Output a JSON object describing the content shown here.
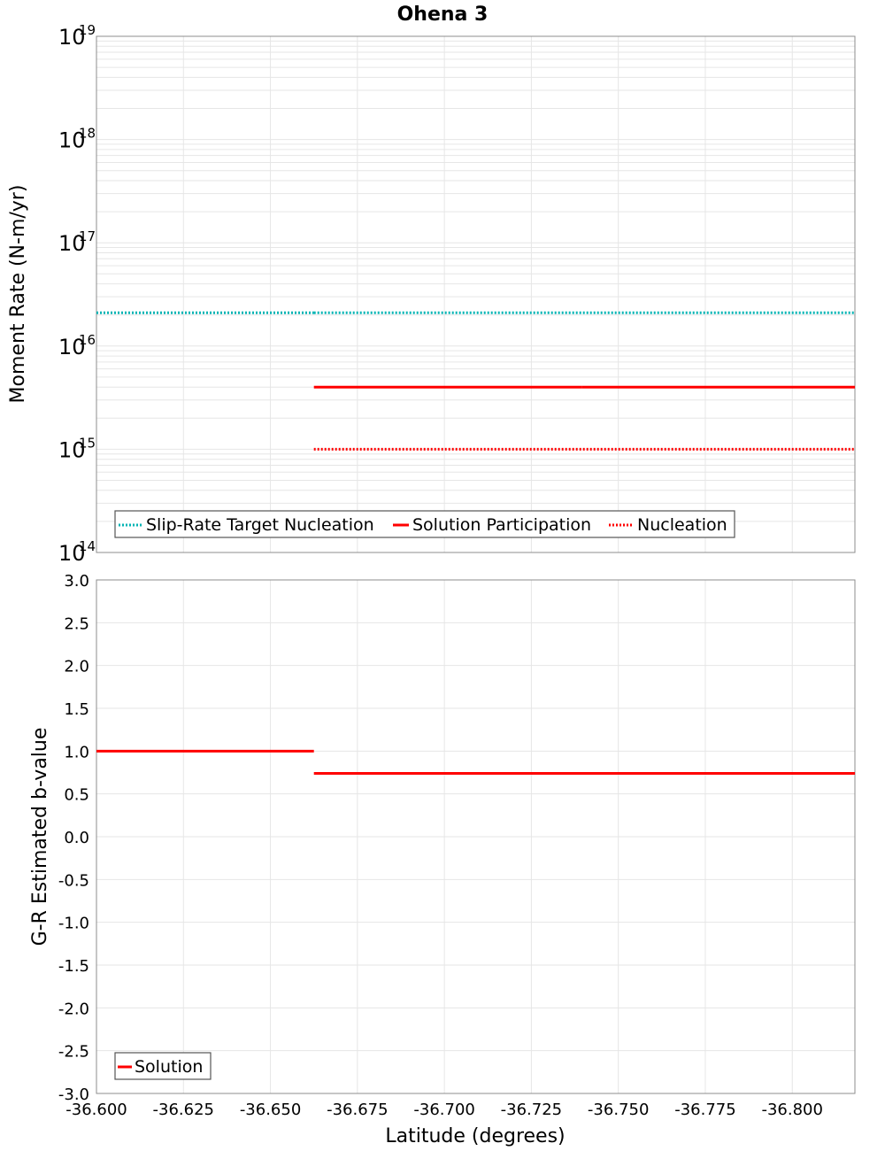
{
  "chart_data": {
    "title": "Ohena 3",
    "xlabel": "Latitude (degrees)",
    "xlim": [
      -36.6,
      -36.818
    ],
    "x_ticks": [
      "-36.600",
      "-36.625",
      "-36.650",
      "-36.675",
      "-36.700",
      "-36.725",
      "-36.750",
      "-36.775",
      "-36.800"
    ],
    "x_tick_values": [
      -36.6,
      -36.625,
      -36.65,
      -36.675,
      -36.7,
      -36.725,
      -36.75,
      -36.775,
      -36.8
    ],
    "panels": [
      {
        "type": "line",
        "ylabel": "Moment Rate (N-m/yr)",
        "yscale": "log",
        "ylim": [
          100000000000000.0,
          1e+19
        ],
        "y_ticks": [
          {
            "base": "10",
            "exp": "19",
            "value": 1e+19
          },
          {
            "base": "10",
            "exp": "18",
            "value": 1e+18
          },
          {
            "base": "10",
            "exp": "17",
            "value": 1e+17
          },
          {
            "base": "10",
            "exp": "16",
            "value": 1e+16
          },
          {
            "base": "10",
            "exp": "15",
            "value": 1000000000000000.0
          },
          {
            "base": "10",
            "exp": "14",
            "value": 100000000000000.0
          }
        ],
        "series": [
          {
            "name": "Slip-Rate Target Nucleation",
            "color": "#00b4b4",
            "style": "dotted",
            "segments": [
              {
                "x": [
                  -36.6,
                  -36.6625
                ],
                "y": 2.1e+16
              },
              {
                "x": [
                  -36.6625,
                  -36.818
                ],
                "y": 2.1e+16
              }
            ]
          },
          {
            "name": "Solution Participation",
            "color": "#ff0000",
            "style": "solid",
            "segments": [
              {
                "x": [
                  -36.6625,
                  -36.7395
                ],
                "y": 4000000000000000.0
              },
              {
                "x": [
                  -36.7395,
                  -36.818
                ],
                "y": 4000000000000000.0
              }
            ]
          },
          {
            "name": "Nucleation",
            "color": "#ff0000",
            "style": "dotted",
            "segments": [
              {
                "x": [
                  -36.6625,
                  -36.818
                ],
                "y": 1000000000000000.0
              }
            ]
          }
        ],
        "legend": [
          "Slip-Rate Target Nucleation",
          "Solution Participation",
          "Nucleation"
        ]
      },
      {
        "type": "line",
        "ylabel": "G-R Estimated b-value",
        "yscale": "linear",
        "ylim": [
          -3.0,
          3.0
        ],
        "y_ticks": [
          "3.0",
          "2.5",
          "2.0",
          "1.5",
          "1.0",
          "0.5",
          "0.0",
          "-0.5",
          "-1.0",
          "-1.5",
          "-2.0",
          "-2.5",
          "-3.0"
        ],
        "y_tick_values": [
          3.0,
          2.5,
          2.0,
          1.5,
          1.0,
          0.5,
          0.0,
          -0.5,
          -1.0,
          -1.5,
          -2.0,
          -2.5,
          -3.0
        ],
        "series": [
          {
            "name": "Solution",
            "color": "#ff0000",
            "style": "solid",
            "segments": [
              {
                "x": [
                  -36.6,
                  -36.6625
                ],
                "y": 1.0
              },
              {
                "x": [
                  -36.6625,
                  -36.818
                ],
                "y": 0.74
              }
            ]
          }
        ],
        "legend": [
          "Solution"
        ]
      }
    ]
  }
}
